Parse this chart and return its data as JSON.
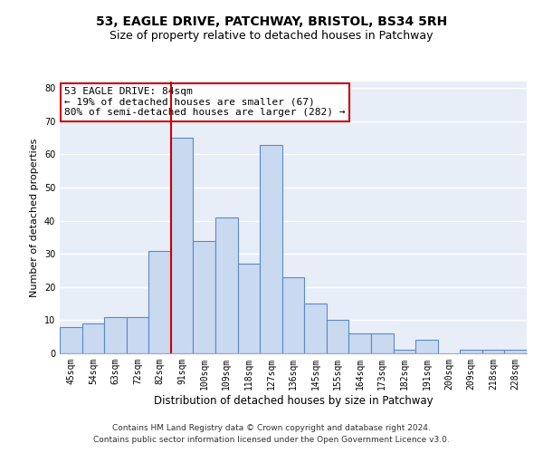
{
  "title1": "53, EAGLE DRIVE, PATCHWAY, BRISTOL, BS34 5RH",
  "title2": "Size of property relative to detached houses in Patchway",
  "xlabel": "Distribution of detached houses by size in Patchway",
  "ylabel": "Number of detached properties",
  "categories": [
    "45sqm",
    "54sqm",
    "63sqm",
    "72sqm",
    "82sqm",
    "91sqm",
    "100sqm",
    "109sqm",
    "118sqm",
    "127sqm",
    "136sqm",
    "145sqm",
    "155sqm",
    "164sqm",
    "173sqm",
    "182sqm",
    "191sqm",
    "200sqm",
    "209sqm",
    "218sqm",
    "228sqm"
  ],
  "values": [
    8,
    9,
    11,
    11,
    31,
    65,
    34,
    41,
    27,
    63,
    23,
    15,
    10,
    6,
    6,
    1,
    4,
    0,
    1,
    1,
    1
  ],
  "bar_color": "#c9d9f0",
  "bar_edge_color": "#5a8ac6",
  "annotation_text": "53 EAGLE DRIVE: 84sqm\n← 19% of detached houses are smaller (67)\n80% of semi-detached houses are larger (282) →",
  "annotation_box_color": "#ffffff",
  "annotation_box_edge_color": "#cc0000",
  "ylim": [
    0,
    82
  ],
  "yticks": [
    0,
    10,
    20,
    30,
    40,
    50,
    60,
    70,
    80
  ],
  "background_color": "#e8eef8",
  "grid_color": "#ffffff",
  "footer1": "Contains HM Land Registry data © Crown copyright and database right 2024.",
  "footer2": "Contains public sector information licensed under the Open Government Licence v3.0.",
  "red_line_color": "#cc0000",
  "title1_fontsize": 10,
  "title2_fontsize": 9,
  "tick_fontsize": 7,
  "ylabel_fontsize": 8,
  "xlabel_fontsize": 8.5,
  "footer_fontsize": 6.5,
  "annotation_fontsize": 8
}
